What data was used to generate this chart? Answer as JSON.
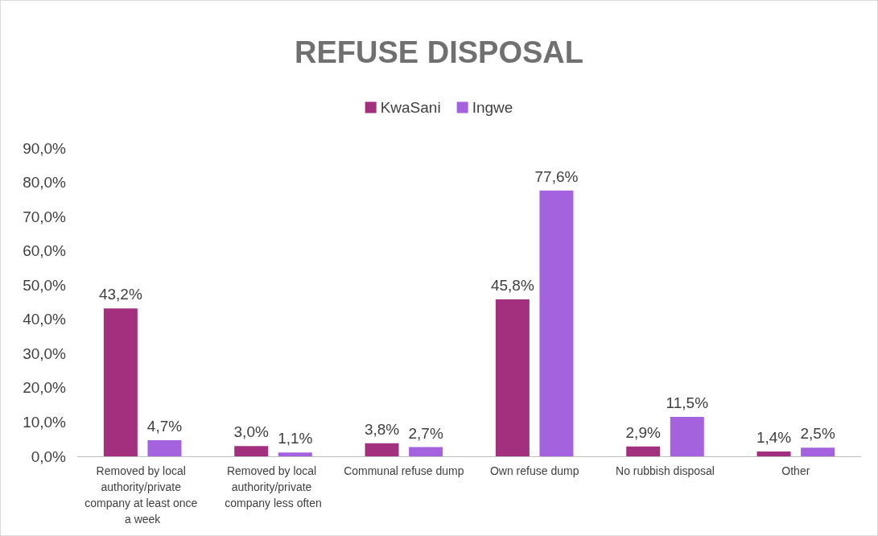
{
  "chart_data": {
    "type": "bar",
    "title": "REFUSE DISPOSAL",
    "categories": [
      "Removed by local authority/private company at least once a week",
      "Removed by local authority/private company less often",
      "Communal refuse dump",
      "Own refuse dump",
      "No rubbish disposal",
      "Other"
    ],
    "series": [
      {
        "name": "KwaSani",
        "color": "#a3307f",
        "values": [
          43.2,
          3.0,
          3.8,
          45.8,
          2.9,
          1.4
        ],
        "value_labels": [
          "43,2%",
          "3,0%",
          "3,8%",
          "45,8%",
          "2,9%",
          "1,4%"
        ]
      },
      {
        "name": "Ingwe",
        "color": "#a562de",
        "values": [
          4.7,
          1.1,
          2.7,
          77.6,
          11.5,
          2.5
        ],
        "value_labels": [
          "4,7%",
          "1,1%",
          "2,7%",
          "77,6%",
          "11,5%",
          "2,5%"
        ]
      }
    ],
    "ylim": [
      0,
      90
    ],
    "yticks": [
      {
        "value": 0,
        "label": "0,0%"
      },
      {
        "value": 10,
        "label": "10,0%"
      },
      {
        "value": 20,
        "label": "20,0%"
      },
      {
        "value": 30,
        "label": "30,0%"
      },
      {
        "value": 40,
        "label": "40,0%"
      },
      {
        "value": 50,
        "label": "50,0%"
      },
      {
        "value": 60,
        "label": "60,0%"
      },
      {
        "value": 70,
        "label": "70,0%"
      },
      {
        "value": 80,
        "label": "80,0%"
      },
      {
        "value": 90,
        "label": "90,0%"
      }
    ],
    "grid": false,
    "legend": "top"
  }
}
